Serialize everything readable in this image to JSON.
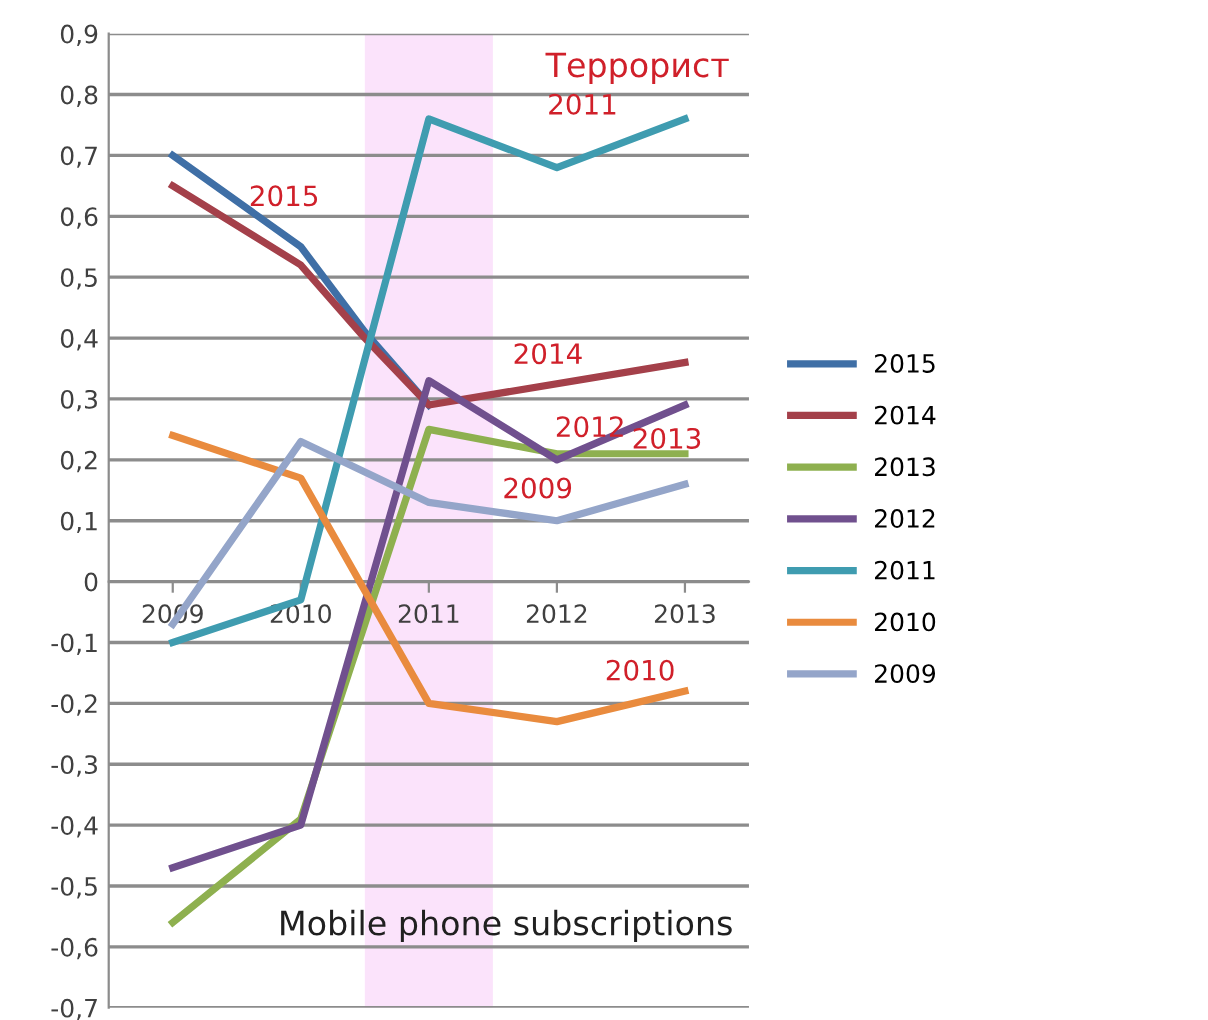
{
  "chart_data": {
    "type": "line",
    "xlim": [
      2008.5,
      2013.5
    ],
    "xticks": [
      2009,
      2010,
      2011,
      2012,
      2013
    ],
    "ylim": [
      -0.7,
      0.9
    ],
    "yticks": [
      {
        "value": -0.7,
        "label": "-0,7"
      },
      {
        "value": -0.6,
        "label": "-0,6"
      },
      {
        "value": -0.5,
        "label": "-0,5"
      },
      {
        "value": -0.4,
        "label": "-0,4"
      },
      {
        "value": -0.3,
        "label": "-0,3"
      },
      {
        "value": -0.2,
        "label": "-0,2"
      },
      {
        "value": -0.1,
        "label": "-0,1"
      },
      {
        "value": 0,
        "label": "0"
      },
      {
        "value": 0.1,
        "label": "0,1"
      },
      {
        "value": 0.2,
        "label": "0,2"
      },
      {
        "value": 0.3,
        "label": "0,3"
      },
      {
        "value": 0.4,
        "label": "0,4"
      },
      {
        "value": 0.5,
        "label": "0,5"
      },
      {
        "value": 0.6,
        "label": "0,6"
      },
      {
        "value": 0.7,
        "label": "0,7"
      },
      {
        "value": 0.8,
        "label": "0,8"
      },
      {
        "value": 0.9,
        "label": "0,9"
      }
    ],
    "grid": "y",
    "legend": "right",
    "marker": "none",
    "line_style": "solid",
    "series": [
      {
        "name": "2015",
        "color": "#3f6fa6",
        "x": [
          2009,
          2010,
          2010.5,
          2011
        ],
        "values": [
          0.7,
          0.55,
          0.41,
          0.29
        ]
      },
      {
        "name": "2014",
        "color": "#a4404a",
        "x": [
          2009,
          2010,
          2010.5,
          2011,
          2013
        ],
        "values": [
          0.65,
          0.52,
          0.4,
          0.29,
          0.36
        ]
      },
      {
        "name": "2013",
        "color": "#8eb04f",
        "x": [
          2009,
          2010,
          2011,
          2012,
          2013
        ],
        "values": [
          -0.56,
          -0.39,
          0.25,
          0.21,
          0.21
        ]
      },
      {
        "name": "2012",
        "color": "#70508e",
        "x": [
          2009,
          2010,
          2011,
          2012,
          2013
        ],
        "values": [
          -0.47,
          -0.4,
          0.33,
          0.2,
          0.29
        ]
      },
      {
        "name": "2011",
        "color": "#3f9cb0",
        "x": [
          2009,
          2010,
          2011,
          2012,
          2013
        ],
        "values": [
          -0.1,
          -0.03,
          0.76,
          0.68,
          0.76
        ]
      },
      {
        "name": "2010",
        "color": "#e98b3e",
        "x": [
          2009,
          2010,
          2011,
          2012,
          2013
        ],
        "values": [
          0.24,
          0.17,
          -0.2,
          -0.23,
          -0.18
        ]
      },
      {
        "name": "2009",
        "color": "#94a5c9",
        "x": [
          2009,
          2010,
          2011,
          2012,
          2013
        ],
        "values": [
          -0.07,
          0.23,
          0.13,
          0.1,
          0.16
        ]
      }
    ],
    "bands": [
      {
        "axis": "x",
        "from": 2010.5,
        "to": 2011.5,
        "color": "#fbe3fb"
      }
    ],
    "annotations": [
      "Террорист",
      "Mobile phone subscriptions",
      "2015",
      "2011",
      "2014",
      "2012",
      "2013",
      "2009",
      "2010"
    ]
  }
}
